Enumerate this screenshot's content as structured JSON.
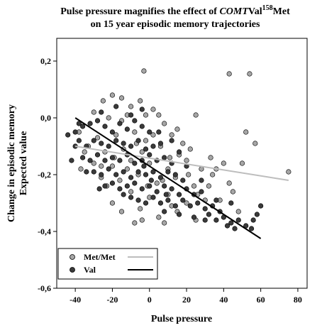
{
  "chart_data": {
    "type": "scatter",
    "title": {
      "line1_prefix": "Pulse pressure magnifies the effect of ",
      "line1_italic": "COMT",
      "line1_mid": "Val",
      "line1_sup": "158",
      "line1_suffix": "Met",
      "line2": "on 15 year episodic memory trajectories"
    },
    "xlabel": "Pulse pressure",
    "ylabel": [
      "Change in episodic memory",
      "Expected value"
    ],
    "xlim": [
      -50,
      85
    ],
    "ylim": [
      -0.6,
      0.28
    ],
    "xticks": [
      -40,
      -20,
      0,
      20,
      40,
      60,
      80
    ],
    "xtick_labels": [
      "-40",
      "-20",
      "0",
      "20",
      "40",
      "60",
      "80"
    ],
    "yticks": [
      -0.6,
      -0.4,
      -0.2,
      0.0,
      0.2
    ],
    "ytick_labels": [
      "-0,6",
      "-0,4",
      "-0,2",
      "0,0",
      "0,2"
    ],
    "grid": false,
    "legend_position": "bottom-left",
    "series": [
      {
        "name": "Met/Met",
        "marker_color": "#a6a6a6",
        "line_color": "#bdbdbd",
        "fit_line": {
          "x": [
            -40,
            75
          ],
          "y": [
            -0.1,
            -0.22
          ]
        },
        "points": [
          [
            -3,
            0.165
          ],
          [
            43,
            0.155
          ],
          [
            54,
            0.155
          ],
          [
            -25,
            0.06
          ],
          [
            -20,
            0.08
          ],
          [
            -15,
            0.07
          ],
          [
            -5,
            0.06
          ],
          [
            2,
            0.03
          ],
          [
            -30,
            0.02
          ],
          [
            -10,
            0.04
          ],
          [
            5,
            0.01
          ],
          [
            -22,
            0.0
          ],
          [
            -12,
            0.01
          ],
          [
            8,
            -0.02
          ],
          [
            25,
            0.01
          ],
          [
            52,
            -0.05
          ],
          [
            -38,
            -0.05
          ],
          [
            -28,
            -0.07
          ],
          [
            -18,
            -0.06
          ],
          [
            -8,
            -0.05
          ],
          [
            -2,
            -0.08
          ],
          [
            12,
            -0.06
          ],
          [
            -33,
            -0.1
          ],
          [
            -24,
            -0.12
          ],
          [
            -14,
            -0.11
          ],
          [
            -4,
            -0.12
          ],
          [
            6,
            -0.1
          ],
          [
            16,
            -0.13
          ],
          [
            22,
            -0.11
          ],
          [
            -30,
            -0.16
          ],
          [
            -20,
            -0.17
          ],
          [
            -10,
            -0.15
          ],
          [
            0,
            -0.16
          ],
          [
            10,
            -0.18
          ],
          [
            20,
            -0.15
          ],
          [
            28,
            -0.18
          ],
          [
            33,
            -0.14
          ],
          [
            -26,
            -0.21
          ],
          [
            -16,
            -0.22
          ],
          [
            -6,
            -0.2
          ],
          [
            4,
            -0.23
          ],
          [
            14,
            -0.21
          ],
          [
            24,
            -0.24
          ],
          [
            34,
            -0.2
          ],
          [
            36,
            -0.18
          ],
          [
            40,
            -0.16
          ],
          [
            50,
            -0.16
          ],
          [
            -10,
            -0.26
          ],
          [
            0,
            -0.28
          ],
          [
            10,
            -0.27
          ],
          [
            20,
            -0.3
          ],
          [
            30,
            -0.29
          ],
          [
            -20,
            -0.3
          ],
          [
            -5,
            -0.32
          ],
          [
            5,
            -0.35
          ],
          [
            15,
            -0.33
          ],
          [
            25,
            -0.36
          ],
          [
            -8,
            -0.37
          ],
          [
            -4,
            -0.36
          ],
          [
            8,
            -0.37
          ],
          [
            -15,
            -0.33
          ],
          [
            57,
            -0.09
          ],
          [
            75,
            -0.19
          ],
          [
            45,
            -0.26
          ],
          [
            38,
            -0.29
          ],
          [
            48,
            -0.33
          ],
          [
            -35,
            -0.12
          ],
          [
            -37,
            -0.18
          ],
          [
            -12,
            -0.18
          ],
          [
            2,
            -0.06
          ],
          [
            18,
            -0.09
          ],
          [
            -19,
            -0.14
          ],
          [
            -7,
            -0.09
          ],
          [
            11,
            -0.14
          ],
          [
            26,
            -0.27
          ],
          [
            32,
            -0.24
          ],
          [
            43,
            -0.23
          ],
          [
            -1,
            -0.24
          ],
          [
            -23,
            -0.24
          ],
          [
            12,
            -0.31
          ],
          [
            -26,
            -0.17
          ],
          [
            21,
            -0.2
          ],
          [
            7,
            -0.22
          ],
          [
            -2,
            0.01
          ],
          [
            -15,
            -0.01
          ],
          [
            15,
            -0.04
          ]
        ]
      },
      {
        "name": "Val",
        "marker_color": "#3a3a3a",
        "line_color": "#000000",
        "fit_line": {
          "x": [
            -40,
            60
          ],
          "y": [
            0.0,
            -0.425
          ]
        },
        "points": [
          [
            -40,
            -0.05
          ],
          [
            -36,
            -0.03
          ],
          [
            -32,
            -0.02
          ],
          [
            -28,
            -0.01
          ],
          [
            -24,
            -0.03
          ],
          [
            -20,
            -0.05
          ],
          [
            -16,
            -0.02
          ],
          [
            -12,
            -0.04
          ],
          [
            -8,
            -0.01
          ],
          [
            -4,
            -0.03
          ],
          [
            0,
            -0.05
          ],
          [
            -38,
            -0.08
          ],
          [
            -34,
            -0.1
          ],
          [
            -30,
            -0.08
          ],
          [
            -26,
            -0.09
          ],
          [
            -22,
            -0.1
          ],
          [
            -18,
            -0.08
          ],
          [
            -14,
            -0.09
          ],
          [
            -10,
            -0.1
          ],
          [
            -6,
            -0.08
          ],
          [
            -2,
            -0.11
          ],
          [
            2,
            -0.1
          ],
          [
            6,
            -0.09
          ],
          [
            -36,
            -0.14
          ],
          [
            -32,
            -0.15
          ],
          [
            -28,
            -0.13
          ],
          [
            -24,
            -0.15
          ],
          [
            -20,
            -0.14
          ],
          [
            -16,
            -0.15
          ],
          [
            -12,
            -0.13
          ],
          [
            -8,
            -0.16
          ],
          [
            -4,
            -0.15
          ],
          [
            0,
            -0.13
          ],
          [
            4,
            -0.15
          ],
          [
            8,
            -0.14
          ],
          [
            12,
            -0.16
          ],
          [
            -30,
            -0.19
          ],
          [
            -26,
            -0.2
          ],
          [
            -22,
            -0.18
          ],
          [
            -18,
            -0.2
          ],
          [
            -14,
            -0.19
          ],
          [
            -10,
            -0.21
          ],
          [
            -6,
            -0.19
          ],
          [
            -2,
            -0.2
          ],
          [
            2,
            -0.19
          ],
          [
            6,
            -0.21
          ],
          [
            10,
            -0.19
          ],
          [
            14,
            -0.2
          ],
          [
            18,
            -0.22
          ],
          [
            -24,
            -0.24
          ],
          [
            -20,
            -0.23
          ],
          [
            -16,
            -0.25
          ],
          [
            -12,
            -0.24
          ],
          [
            -8,
            -0.23
          ],
          [
            -4,
            -0.25
          ],
          [
            0,
            -0.24
          ],
          [
            4,
            -0.26
          ],
          [
            8,
            -0.24
          ],
          [
            12,
            -0.25
          ],
          [
            16,
            -0.27
          ],
          [
            20,
            -0.25
          ],
          [
            24,
            -0.27
          ],
          [
            28,
            -0.26
          ],
          [
            -10,
            -0.28
          ],
          [
            -6,
            -0.29
          ],
          [
            -2,
            -0.3
          ],
          [
            2,
            -0.28
          ],
          [
            6,
            -0.3
          ],
          [
            10,
            -0.29
          ],
          [
            14,
            -0.31
          ],
          [
            18,
            -0.29
          ],
          [
            22,
            -0.31
          ],
          [
            26,
            -0.3
          ],
          [
            30,
            -0.32
          ],
          [
            34,
            -0.31
          ],
          [
            38,
            -0.33
          ],
          [
            8,
            -0.33
          ],
          [
            16,
            -0.34
          ],
          [
            24,
            -0.35
          ],
          [
            32,
            -0.34
          ],
          [
            36,
            -0.36
          ],
          [
            40,
            -0.35
          ],
          [
            44,
            -0.37
          ],
          [
            48,
            -0.36
          ],
          [
            52,
            -0.38
          ],
          [
            56,
            -0.36
          ],
          [
            58,
            -0.34
          ],
          [
            -42,
            -0.15
          ],
          [
            -44,
            -0.06
          ],
          [
            60,
            -0.31
          ],
          [
            55,
            -0.39
          ],
          [
            46,
            -0.39
          ],
          [
            42,
            -0.38
          ],
          [
            30,
            -0.36
          ],
          [
            -40,
            -0.1
          ],
          [
            20,
            -0.17
          ],
          [
            28,
            -0.22
          ],
          [
            36,
            -0.29
          ],
          [
            44,
            -0.3
          ],
          [
            12,
            -0.08
          ],
          [
            16,
            -0.12
          ],
          [
            -3,
            -0.17
          ],
          [
            1,
            -0.22
          ],
          [
            5,
            -0.05
          ],
          [
            -34,
            -0.19
          ],
          [
            -27,
            -0.25
          ],
          [
            9,
            -0.27
          ],
          [
            -14,
            -0.27
          ],
          [
            -38,
            -0.02
          ],
          [
            -26,
            0.02
          ],
          [
            -18,
            0.04
          ],
          [
            -10,
            0.01
          ],
          [
            -4,
            0.03
          ]
        ]
      }
    ]
  }
}
